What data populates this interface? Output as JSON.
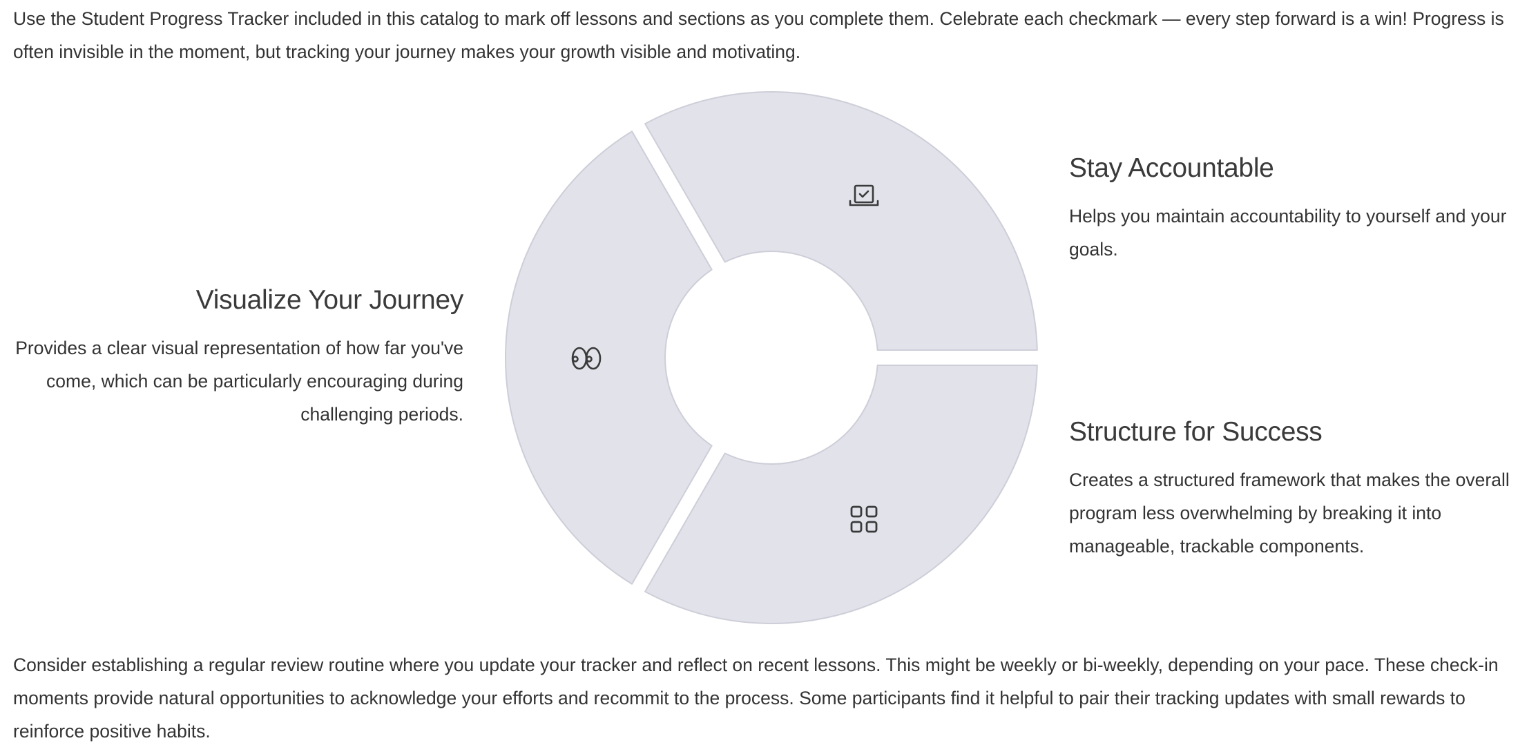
{
  "intro_text": "Use the Student Progress Tracker included in this catalog to mark off lessons and sections as you complete them. Celebrate each checkmark — every step forward is a win! Progress is often invisible in the moment, but tracking your journey makes your growth visible and motivating.",
  "segments": [
    {
      "title": "Stay Accountable",
      "description": "Helps you maintain accountability to yourself and your goals.",
      "icon": "laptop-check-icon"
    },
    {
      "title": "Structure for Success",
      "description": "Creates a structured framework that makes the overall program less overwhelming by breaking it into manageable, trackable components.",
      "icon": "grid-icon"
    },
    {
      "title": "Visualize Your Journey",
      "description": "Provides a clear visual representation of how far you've come, which can be particularly encouraging during challenging periods.",
      "icon": "eyes-icon"
    }
  ],
  "outro_text": "Consider establishing a regular review routine where you update your tracker and reflect on recent lessons. This might be weekly or bi-weekly, depending on your pace. These check-in moments provide natural opportunities to acknowledge your efforts and recommit to the process. Some participants find it helpful to pair their tracking updates with small rewards to reinforce positive habits.",
  "colors": {
    "segment_fill": "#e1e2ea",
    "segment_stroke": "#cdced8",
    "icon": "#3a3a3a",
    "text": "#333333"
  }
}
